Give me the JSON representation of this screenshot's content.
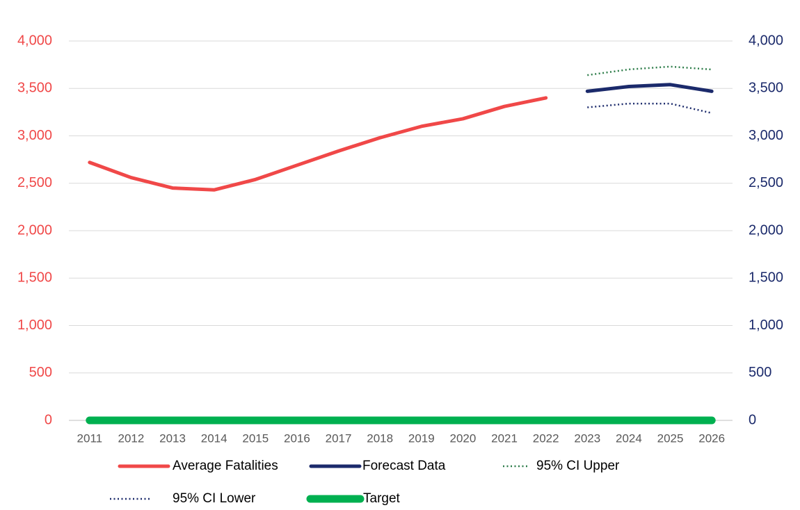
{
  "chart_data": {
    "type": "line",
    "categories": [
      "2011",
      "2012",
      "2013",
      "2014",
      "2015",
      "2016",
      "2017",
      "2018",
      "2019",
      "2020",
      "2021",
      "2022",
      "2023",
      "2024",
      "2025",
      "2026"
    ],
    "ylim": [
      0,
      4000
    ],
    "yticks": [
      0,
      500,
      {
        "value": 1000,
        "label": "1,000"
      },
      {
        "value": 1500,
        "label": "1,500"
      },
      {
        "value": 2000,
        "label": "2,000"
      },
      {
        "value": 2500,
        "label": "2,500"
      },
      {
        "value": 3000,
        "label": "3,000"
      },
      {
        "value": 3500,
        "label": "3,500"
      },
      {
        "value": 4000,
        "label": "4,000"
      }
    ],
    "y2lim": [
      0,
      4000
    ],
    "y2ticks": [
      0,
      500,
      {
        "value": 1000,
        "label": "1,000"
      },
      {
        "value": 1500,
        "label": "1,500"
      },
      {
        "value": 2000,
        "label": "2,000"
      },
      {
        "value": 2500,
        "label": "2,500"
      },
      {
        "value": 3000,
        "label": "3,000"
      },
      {
        "value": 3500,
        "label": "3,500"
      },
      {
        "value": 4000,
        "label": "4,000"
      }
    ],
    "ytick_color": "#f04848",
    "y2tick_color": "#1b2a6b",
    "grid": true,
    "series": [
      {
        "name": "Average Fatalities",
        "color": "#f04848",
        "style": "solid",
        "values": [
          2720,
          2560,
          2450,
          2430,
          2540,
          2690,
          2840,
          2980,
          3100,
          3180,
          3310,
          3400,
          null,
          null,
          null,
          null
        ]
      },
      {
        "name": "Forecast Data",
        "color": "#1b2a6b",
        "style": "solid",
        "axis": "y2",
        "values": [
          null,
          null,
          null,
          null,
          null,
          null,
          null,
          null,
          null,
          null,
          null,
          null,
          3470,
          3520,
          3540,
          3470
        ]
      },
      {
        "name": "95% CI Upper",
        "color": "#2e7d4a",
        "style": "dotted",
        "axis": "y2",
        "values": [
          null,
          null,
          null,
          null,
          null,
          null,
          null,
          null,
          null,
          null,
          null,
          null,
          3640,
          3700,
          3730,
          3700
        ]
      },
      {
        "name": "95% CI Lower",
        "color": "#1b2a6b",
        "style": "dotted",
        "axis": "y2",
        "values": [
          null,
          null,
          null,
          null,
          null,
          null,
          null,
          null,
          null,
          null,
          null,
          null,
          3300,
          3340,
          3340,
          3240
        ]
      },
      {
        "name": "Target",
        "color": "#00b050",
        "style": "thick",
        "values": [
          0,
          0,
          0,
          0,
          0,
          0,
          0,
          0,
          0,
          0,
          0,
          0,
          0,
          0,
          0,
          0
        ]
      }
    ]
  }
}
